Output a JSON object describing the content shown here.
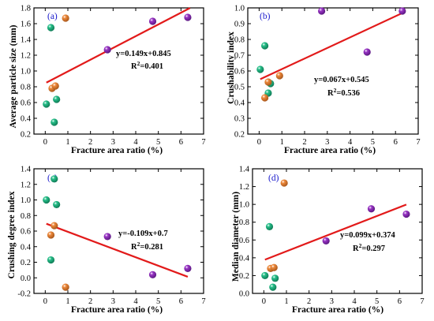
{
  "chart_data": [
    {
      "type": "scatter",
      "panel_label": "(a)",
      "xlabel": "Fracture area ratio (%)",
      "ylabel": "Average particle size (mm)",
      "xlim": [
        -0.5,
        7
      ],
      "ylim": [
        0.2,
        1.8
      ],
      "xticks": [
        0,
        1,
        2,
        3,
        4,
        5,
        6,
        7
      ],
      "yticks": [
        0.2,
        0.4,
        0.6,
        0.8,
        1.0,
        1.2,
        1.4,
        1.6,
        1.8
      ],
      "fit": {
        "equation": "y=0.149x+0.845",
        "r2_prefix": "R",
        "r2_sup": "2",
        "r2_value": "=0.401",
        "slope": 0.149,
        "intercept": 0.845,
        "x_range": [
          0.05,
          6.4
        ]
      },
      "series": [
        {
          "color": "#27c08a",
          "points": [
            [
              0.05,
              0.58
            ],
            [
              0.25,
              1.55
            ],
            [
              0.4,
              0.35
            ],
            [
              0.5,
              0.64
            ]
          ]
        },
        {
          "color": "#ee8a3c",
          "points": [
            [
              0.3,
              0.78
            ],
            [
              0.45,
              0.81
            ],
            [
              0.9,
              1.67
            ]
          ]
        },
        {
          "color": "#9a35c6",
          "points": [
            [
              2.75,
              1.27
            ],
            [
              4.75,
              1.63
            ],
            [
              6.3,
              1.68
            ]
          ]
        }
      ]
    },
    {
      "type": "scatter",
      "panel_label": "(b)",
      "xlabel": "Fracture area ratio (%)",
      "ylabel": "Crushability index",
      "xlim": [
        -0.5,
        7
      ],
      "ylim": [
        0.2,
        1.0
      ],
      "xticks": [
        0,
        1,
        2,
        3,
        4,
        5,
        6,
        7
      ],
      "yticks": [
        0.2,
        0.3,
        0.4,
        0.5,
        0.6,
        0.7,
        0.8,
        0.9,
        1.0
      ],
      "fit": {
        "equation": "y=0.067x+0.545",
        "r2_prefix": "R",
        "r2_sup": "2",
        "r2_value": "=0.536",
        "slope": 0.067,
        "intercept": 0.545,
        "x_range": [
          0.05,
          6.3
        ]
      },
      "series": [
        {
          "color": "#27c08a",
          "points": [
            [
              0.05,
              0.61
            ],
            [
              0.25,
              0.76
            ],
            [
              0.4,
              0.46
            ],
            [
              0.5,
              0.52
            ]
          ]
        },
        {
          "color": "#ee8a3c",
          "points": [
            [
              0.25,
              0.43
            ],
            [
              0.4,
              0.53
            ],
            [
              0.9,
              0.57
            ]
          ]
        },
        {
          "color": "#9a35c6",
          "points": [
            [
              2.75,
              0.98
            ],
            [
              4.75,
              0.72
            ],
            [
              6.3,
              0.98
            ]
          ]
        }
      ]
    },
    {
      "type": "scatter",
      "panel_label": "(c)",
      "xlabel": "Fracture area ratio (%)",
      "ylabel": "Crushing degree index",
      "xlim": [
        -0.5,
        7
      ],
      "ylim": [
        -0.2,
        1.4
      ],
      "xticks": [
        0,
        1,
        2,
        3,
        4,
        5,
        6,
        7
      ],
      "yticks": [
        -0.2,
        0.0,
        0.2,
        0.4,
        0.6,
        0.8,
        1.0,
        1.2,
        1.4
      ],
      "fit": {
        "equation": "y=-0.109x+0.7",
        "r2_prefix": "R",
        "r2_sup": "2",
        "r2_value": "=0.281",
        "slope": -0.109,
        "intercept": 0.7,
        "x_range": [
          0.05,
          6.3
        ]
      },
      "series": [
        {
          "color": "#27c08a",
          "points": [
            [
              0.05,
              1.0
            ],
            [
              0.25,
              0.23
            ],
            [
              0.4,
              1.27
            ],
            [
              0.5,
              0.94
            ]
          ]
        },
        {
          "color": "#ee8a3c",
          "points": [
            [
              0.25,
              0.55
            ],
            [
              0.4,
              0.67
            ],
            [
              0.9,
              -0.12
            ]
          ]
        },
        {
          "color": "#9a35c6",
          "points": [
            [
              2.75,
              0.53
            ],
            [
              4.75,
              0.04
            ],
            [
              6.3,
              0.12
            ]
          ]
        }
      ]
    },
    {
      "type": "scatter",
      "panel_label": "(d)",
      "xlabel": "Fracture area ratio (%)",
      "ylabel": "Median diameter (mm)",
      "xlim": [
        -0.5,
        7
      ],
      "ylim": [
        0.0,
        1.4
      ],
      "xticks": [
        0,
        1,
        2,
        3,
        4,
        5,
        6,
        7
      ],
      "yticks": [
        0.0,
        0.2,
        0.4,
        0.6,
        0.8,
        1.0,
        1.2,
        1.4
      ],
      "fit": {
        "equation": "y=0.099x+0.374",
        "r2_prefix": "R",
        "r2_sup": "2",
        "r2_value": "=0.297",
        "slope": 0.099,
        "intercept": 0.374,
        "x_range": [
          0.05,
          6.3
        ]
      },
      "series": [
        {
          "color": "#27c08a",
          "points": [
            [
              0.05,
              0.2
            ],
            [
              0.25,
              0.75
            ],
            [
              0.4,
              0.07
            ],
            [
              0.5,
              0.17
            ]
          ]
        },
        {
          "color": "#ee8a3c",
          "points": [
            [
              0.3,
              0.28
            ],
            [
              0.45,
              0.29
            ],
            [
              0.9,
              1.24
            ]
          ]
        },
        {
          "color": "#9a35c6",
          "points": [
            [
              2.75,
              0.59
            ],
            [
              4.75,
              0.95
            ],
            [
              6.3,
              0.89
            ]
          ]
        }
      ]
    }
  ]
}
